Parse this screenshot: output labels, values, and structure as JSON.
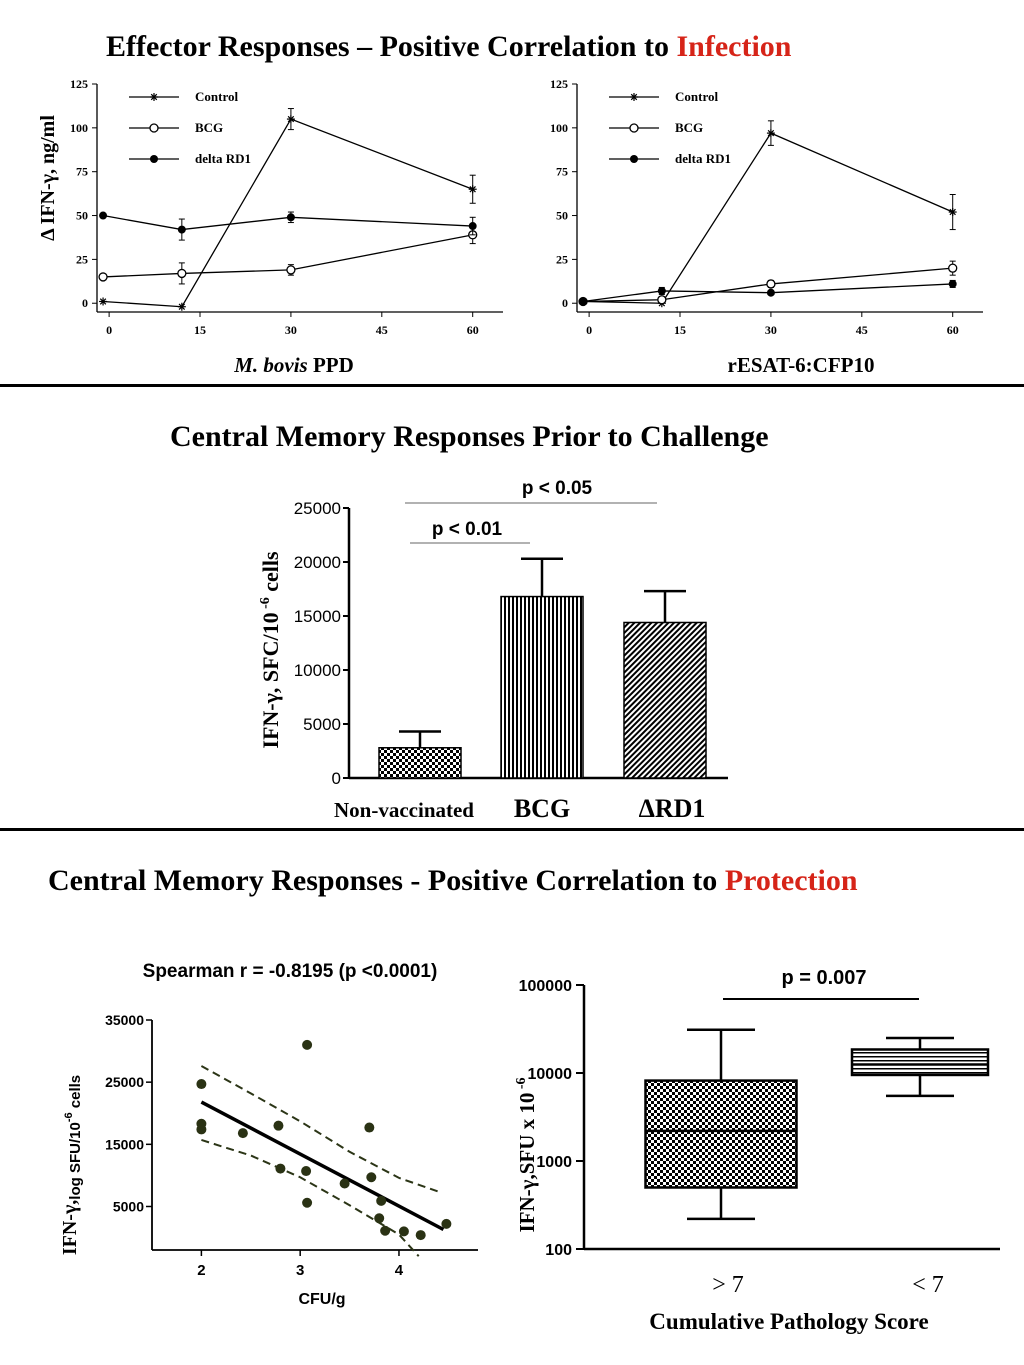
{
  "section1": {
    "title_pre": "Effector Responses",
    "title_dash": " – ",
    "title_mid": "Positive Correlation to ",
    "title_accent": "Infection",
    "accent_color": "#d62418"
  },
  "section2": {
    "title": "Central Memory Responses Prior to Challenge"
  },
  "section3": {
    "title_pre": "Central Memory Responses - Positive Correlation to ",
    "title_accent": "Protection",
    "accent_color": "#d62418"
  },
  "chart_data": [
    {
      "type": "line",
      "ylabel": "Δ IFN-γ, ng/ml",
      "xlabel_italic": "M. bovis",
      "xlabel_rest": " PPD",
      "xlim": [
        -2,
        65
      ],
      "ylim": [
        -5,
        125
      ],
      "xticks": [
        0,
        15,
        30,
        45,
        60
      ],
      "yticks": [
        0,
        25,
        50,
        75,
        100,
        125
      ],
      "series": [
        {
          "name": "Control",
          "marker": "star",
          "x": [
            -1,
            12,
            30,
            60
          ],
          "y": [
            1,
            -2,
            105,
            65
          ],
          "err": [
            0,
            0,
            6,
            8
          ]
        },
        {
          "name": "BCG",
          "marker": "open",
          "x": [
            -1,
            12,
            30,
            60
          ],
          "y": [
            15,
            17,
            19,
            39
          ],
          "err": [
            0,
            6,
            3,
            5
          ]
        },
        {
          "name": "delta RD1",
          "marker": "filled",
          "x": [
            -1,
            12,
            30,
            60
          ],
          "y": [
            50,
            42,
            49,
            44
          ],
          "err": [
            0,
            6,
            3,
            5
          ]
        }
      ]
    },
    {
      "type": "line",
      "xlabel": "rESAT-6:CFP10",
      "xlim": [
        -2,
        65
      ],
      "ylim": [
        -5,
        125
      ],
      "xticks": [
        0,
        15,
        30,
        45,
        60
      ],
      "yticks": [
        0,
        25,
        50,
        75,
        100,
        125
      ],
      "series": [
        {
          "name": "Control",
          "marker": "star",
          "x": [
            -1,
            12,
            30,
            60
          ],
          "y": [
            1,
            0,
            97,
            52
          ],
          "err": [
            0,
            0,
            7,
            10
          ]
        },
        {
          "name": "BCG",
          "marker": "open",
          "x": [
            -1,
            12,
            30,
            60
          ],
          "y": [
            1,
            2,
            11,
            20
          ],
          "err": [
            0,
            0,
            2,
            4
          ]
        },
        {
          "name": "delta RD1",
          "marker": "filled",
          "x": [
            -1,
            12,
            30,
            60
          ],
          "y": [
            1,
            7,
            6,
            11
          ],
          "err": [
            0,
            2,
            1,
            2
          ]
        }
      ]
    },
    {
      "type": "bar",
      "ylabel": "IFN-γ, SFC/10 -6 cells",
      "ylabel_main": "IFN-γ, SFC/10",
      "ylabel_sup": " -6",
      "ylabel_end": " cells",
      "ylim": [
        0,
        25000
      ],
      "yticks": [
        0,
        5000,
        10000,
        15000,
        20000,
        25000
      ],
      "categories": [
        "Non-vaccinated",
        "BCG",
        "ΔRD1"
      ],
      "values": [
        2800,
        16800,
        14400
      ],
      "errors": [
        1500,
        3500,
        2900
      ],
      "significance": [
        {
          "label": "p < 0.01",
          "from": 0,
          "to": 1
        },
        {
          "label": "p < 0.05",
          "from": 0,
          "to": 2
        }
      ]
    },
    {
      "type": "scatter",
      "title": "Spearman r = -0.8195 (p <0.0001)",
      "xlabel": "CFU/g",
      "ylabel_main": "IFN-γ,",
      "ylabel_sub": "log",
      "ylabel_mid": " SFU/10",
      "ylabel_sup": "-6",
      "ylabel_end": " cells",
      "xlim": [
        1.5,
        4.8
      ],
      "ylim": [
        -2000,
        35000
      ],
      "xticks": [
        2,
        3,
        4
      ],
      "yticks": [
        5000,
        15000,
        25000,
        35000
      ],
      "points": [
        [
          2.0,
          24700
        ],
        [
          2.0,
          18300
        ],
        [
          2.0,
          17400
        ],
        [
          2.42,
          16800
        ],
        [
          2.78,
          18000
        ],
        [
          2.8,
          11100
        ],
        [
          3.07,
          31000
        ],
        [
          3.06,
          10700
        ],
        [
          3.07,
          5600
        ],
        [
          3.45,
          8700
        ],
        [
          3.7,
          17700
        ],
        [
          3.72,
          9700
        ],
        [
          3.82,
          5900
        ],
        [
          3.8,
          3100
        ],
        [
          3.86,
          1100
        ],
        [
          4.05,
          1000
        ],
        [
          4.22,
          400
        ],
        [
          4.48,
          2200
        ]
      ],
      "fit": {
        "x": [
          2.0,
          4.45
        ],
        "y": [
          21800,
          1300
        ]
      },
      "ci_upper": {
        "x": [
          2.0,
          2.5,
          3.0,
          3.5,
          4.0,
          4.4
        ],
        "y": [
          27600,
          23200,
          18700,
          13800,
          9600,
          7400
        ]
      },
      "ci_lower": {
        "x": [
          2.0,
          2.5,
          3.0,
          3.5,
          4.0,
          4.2
        ],
        "y": [
          15700,
          13200,
          9700,
          5200,
          500,
          -3000
        ]
      }
    },
    {
      "type": "box",
      "ylabel": "IFN-γ,SFU x 10 -6",
      "ylabel_main": "IFN-γ,SFU x 10",
      "ylabel_sup": " -6",
      "xlabel": "Cumulative Pathology Score",
      "scale": "log",
      "ylim": [
        100,
        100000
      ],
      "yticks": [
        100,
        1000,
        10000,
        100000
      ],
      "categories": [
        "> 7",
        "< 7"
      ],
      "boxes": [
        {
          "min": 220,
          "q1": 500,
          "median": 2200,
          "q3": 8200,
          "max": 31000
        },
        {
          "min": 5500,
          "q1": 9500,
          "median": 12500,
          "q3": 18500,
          "max": 25000
        }
      ],
      "significance": {
        "label": "p = 0.007",
        "from": 0,
        "to": 1
      }
    }
  ]
}
